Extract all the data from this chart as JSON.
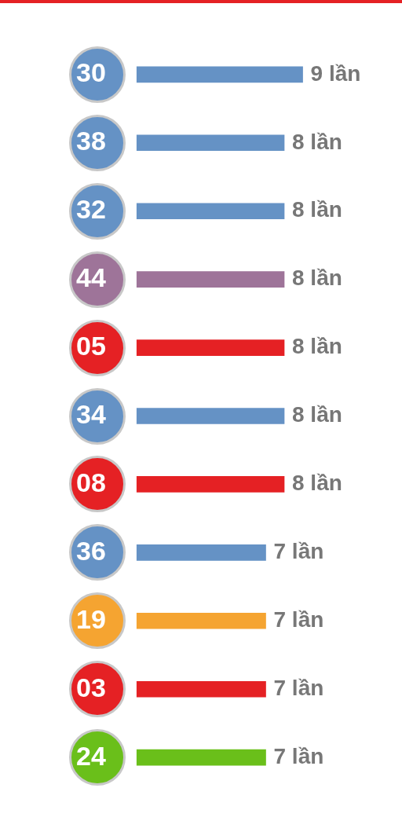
{
  "chart_data": {
    "type": "bar",
    "orientation": "horizontal",
    "categories": [
      "30",
      "38",
      "32",
      "44",
      "05",
      "34",
      "08",
      "36",
      "19",
      "03",
      "24"
    ],
    "values": [
      9,
      8,
      8,
      8,
      8,
      8,
      8,
      7,
      7,
      7,
      7
    ],
    "colors": [
      "#6592c5",
      "#6592c5",
      "#6592c5",
      "#9e7499",
      "#e52124",
      "#6592c5",
      "#e52124",
      "#6592c5",
      "#f5a431",
      "#e52124",
      "#6abf1a"
    ],
    "value_labels": [
      "9 lần",
      "8 lần",
      "8 lần",
      "8 lần",
      "8 lần",
      "8 lần",
      "8 lần",
      "7 lần",
      "7 lần",
      "7 lần",
      "7 lần"
    ],
    "grid": false,
    "legend": false,
    "tick_labels": "y"
  }
}
